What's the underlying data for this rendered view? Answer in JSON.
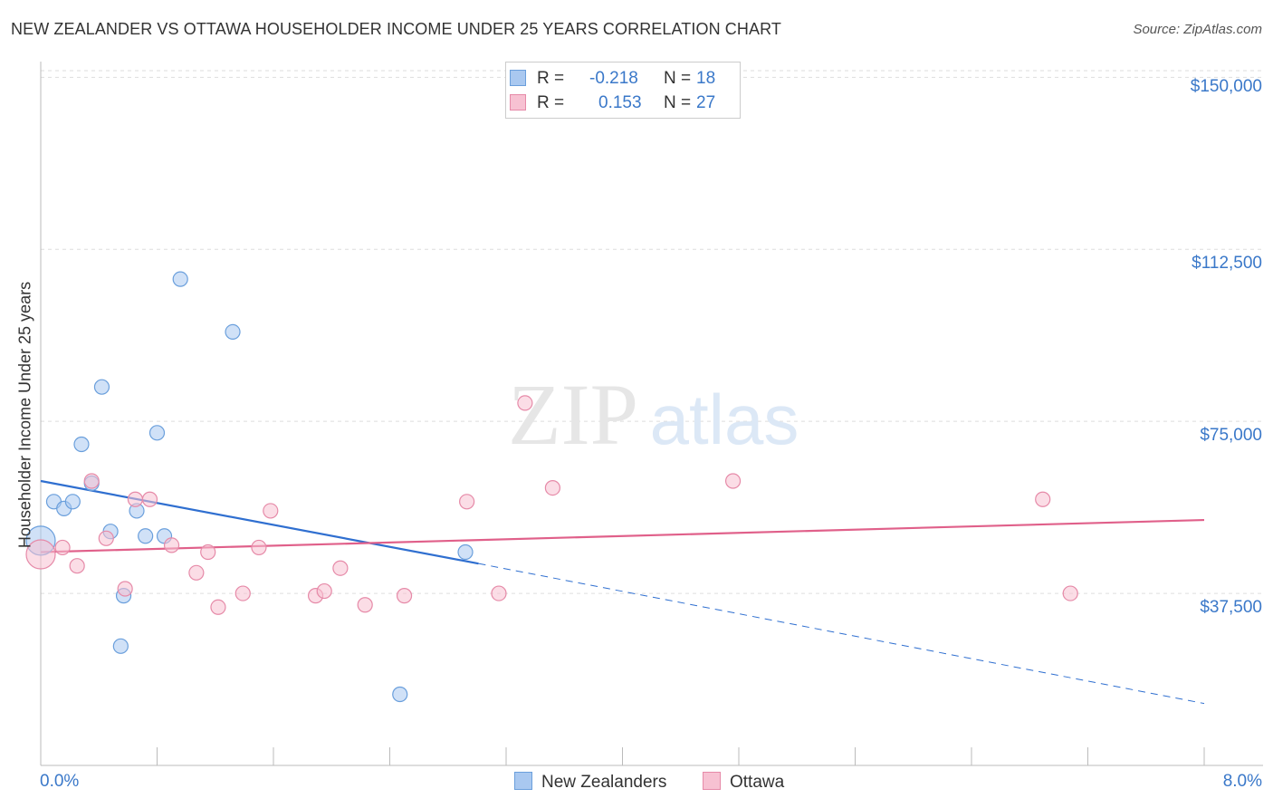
{
  "title": "NEW ZEALANDER VS OTTAWA HOUSEHOLDER INCOME UNDER 25 YEARS CORRELATION CHART",
  "source": "Source: ZipAtlas.com",
  "watermark": {
    "zip": "ZIP",
    "atlas": "atlas"
  },
  "legend": {
    "series1": {
      "r_label": "R =",
      "r_value": "-0.218",
      "n_label": "N =",
      "n_value": "18",
      "color": "#a9c8f0",
      "border": "#6a9fdc"
    },
    "series2": {
      "r_label": "R =",
      "r_value": "0.153",
      "n_label": "N =",
      "n_value": "27",
      "color": "#f7c1d2",
      "border": "#e68aa8"
    }
  },
  "bottom_legend": {
    "series1": "New Zealanders",
    "series2": "Ottawa"
  },
  "chart_data": {
    "type": "scatter",
    "title": "NEW ZEALANDER VS OTTAWA HOUSEHOLDER INCOME UNDER 25 YEARS CORRELATION CHART",
    "xlabel": "",
    "ylabel": "Householder Income Under 25 years",
    "xlim": [
      0,
      8
    ],
    "ylim": [
      0,
      155000
    ],
    "x_tick_labels": [
      "0.0%",
      "8.0%"
    ],
    "y_ticks": [
      37500,
      75000,
      112500,
      150000
    ],
    "y_tick_labels": [
      "$37,500",
      "$75,000",
      "$112,500",
      "$150,000"
    ],
    "grid": true,
    "series": [
      {
        "name": "New Zealanders",
        "color": "#6a9fdc",
        "fill": "#a9c8f0",
        "points": [
          {
            "x": 0.0,
            "y": 49000,
            "big": true
          },
          {
            "x": 0.09,
            "y": 57500
          },
          {
            "x": 0.16,
            "y": 56000
          },
          {
            "x": 0.22,
            "y": 57500
          },
          {
            "x": 0.28,
            "y": 70000
          },
          {
            "x": 0.35,
            "y": 61500
          },
          {
            "x": 0.42,
            "y": 82500
          },
          {
            "x": 0.48,
            "y": 51000
          },
          {
            "x": 0.55,
            "y": 26000
          },
          {
            "x": 0.57,
            "y": 37000
          },
          {
            "x": 0.66,
            "y": 55500
          },
          {
            "x": 0.72,
            "y": 50000
          },
          {
            "x": 0.8,
            "y": 72500
          },
          {
            "x": 0.85,
            "y": 50000
          },
          {
            "x": 0.96,
            "y": 106000
          },
          {
            "x": 1.32,
            "y": 94500
          },
          {
            "x": 2.47,
            "y": 15500
          },
          {
            "x": 2.92,
            "y": 46500
          }
        ],
        "trend": {
          "x0": 0.0,
          "y0": 62000,
          "x1": 3.01,
          "y1": 44000,
          "dash_x1": 8.0,
          "dash_y1": 13500
        }
      },
      {
        "name": "Ottawa",
        "color": "#e68aa8",
        "fill": "#f7c1d2",
        "points": [
          {
            "x": 0.0,
            "y": 46000,
            "big": true
          },
          {
            "x": 0.15,
            "y": 47500
          },
          {
            "x": 0.25,
            "y": 43500
          },
          {
            "x": 0.35,
            "y": 62000
          },
          {
            "x": 0.45,
            "y": 49500
          },
          {
            "x": 0.58,
            "y": 38500
          },
          {
            "x": 0.65,
            "y": 58000
          },
          {
            "x": 0.75,
            "y": 58000
          },
          {
            "x": 0.9,
            "y": 48000
          },
          {
            "x": 1.07,
            "y": 42000
          },
          {
            "x": 1.15,
            "y": 46500
          },
          {
            "x": 1.22,
            "y": 34500
          },
          {
            "x": 1.39,
            "y": 37500
          },
          {
            "x": 1.5,
            "y": 47500
          },
          {
            "x": 1.58,
            "y": 55500
          },
          {
            "x": 1.89,
            "y": 37000
          },
          {
            "x": 1.95,
            "y": 38000
          },
          {
            "x": 2.06,
            "y": 43000
          },
          {
            "x": 2.23,
            "y": 35000
          },
          {
            "x": 2.5,
            "y": 37000
          },
          {
            "x": 2.93,
            "y": 57500
          },
          {
            "x": 3.15,
            "y": 37500
          },
          {
            "x": 3.33,
            "y": 79000
          },
          {
            "x": 3.52,
            "y": 60500
          },
          {
            "x": 4.76,
            "y": 62000
          },
          {
            "x": 6.89,
            "y": 58000
          },
          {
            "x": 7.08,
            "y": 37500
          }
        ],
        "trend": {
          "x0": 0.0,
          "y0": 46500,
          "x1": 8.0,
          "y1": 53500
        }
      }
    ]
  }
}
